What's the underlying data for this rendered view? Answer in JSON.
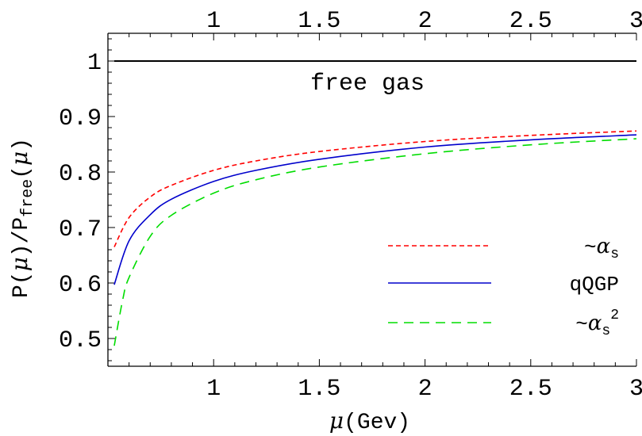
{
  "chart_data": {
    "type": "line",
    "xlabel_parts": {
      "symbol": "μ",
      "unit": "(Gev)"
    },
    "ylabel_parts": {
      "p1": "P(",
      "mu1": "μ",
      "p2": ")/P",
      "sub": "free",
      "p3": "(",
      "mu2": "μ",
      "p4": ")"
    },
    "xlim": [
      0.5,
      3.0
    ],
    "ylim": [
      0.45,
      1.05
    ],
    "xticks": [
      1,
      1.5,
      2,
      2.5,
      3
    ],
    "xtick_labels": [
      "1",
      "1.5",
      "2",
      "2.5",
      "3"
    ],
    "yticks": [
      0.5,
      0.6,
      0.7,
      0.8,
      0.9,
      1.0
    ],
    "ytick_labels": [
      "0.5",
      "0.6",
      "0.7",
      "0.8",
      "0.9",
      "1"
    ],
    "grid": false,
    "legend_position": "lower-right",
    "annotation": "free gas",
    "series": [
      {
        "name": "free gas",
        "color": "#000000",
        "dash": "solid",
        "x": [
          0.53,
          3.0
        ],
        "y": [
          1.0,
          1.0
        ]
      },
      {
        "name": "~αs",
        "legend": {
          "prefix": "~",
          "symbol": "α",
          "sub": "s",
          "sup": ""
        },
        "color": "#ff0000",
        "dash": "short-dash",
        "x": [
          0.53,
          0.6,
          0.7,
          0.8,
          1.0,
          1.2,
          1.5,
          2.0,
          2.5,
          3.0
        ],
        "y": [
          0.665,
          0.718,
          0.755,
          0.776,
          0.803,
          0.82,
          0.837,
          0.855,
          0.866,
          0.874
        ]
      },
      {
        "name": "qQGP",
        "legend": {
          "prefix": "",
          "symbol": "",
          "sub": "",
          "sup": "",
          "text": "qQGP"
        },
        "color": "#0000cc",
        "dash": "solid",
        "x": [
          0.53,
          0.6,
          0.7,
          0.8,
          1.0,
          1.2,
          1.5,
          2.0,
          2.5,
          3.0
        ],
        "y": [
          0.597,
          0.676,
          0.723,
          0.751,
          0.783,
          0.803,
          0.823,
          0.845,
          0.858,
          0.867
        ]
      },
      {
        "name": "~αs²",
        "legend": {
          "prefix": "~",
          "symbol": "α",
          "sub": "s",
          "sup": "2"
        },
        "color": "#00dd00",
        "dash": "long-dash",
        "x": [
          0.53,
          0.57,
          0.6,
          0.7,
          0.8,
          1.0,
          1.2,
          1.5,
          2.0,
          2.5,
          3.0
        ],
        "y": [
          0.487,
          0.57,
          0.61,
          0.684,
          0.722,
          0.762,
          0.786,
          0.809,
          0.833,
          0.849,
          0.86
        ]
      }
    ]
  }
}
